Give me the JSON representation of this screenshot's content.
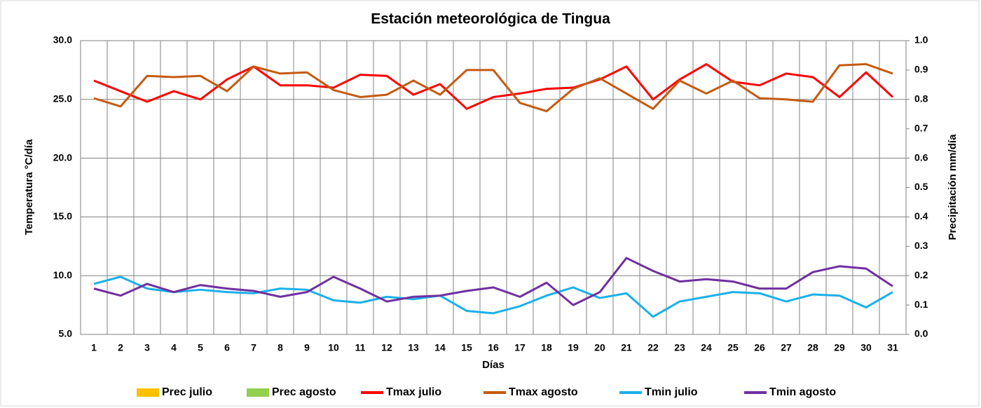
{
  "chart_data": {
    "type": "line",
    "title": "Estación meteorológica de Tingua",
    "x_label": "Días",
    "y_label": "Temperatura °C/día",
    "y2_label": "Precipitación mm/día",
    "categories": [
      "1",
      "2",
      "3",
      "4",
      "5",
      "6",
      "7",
      "8",
      "9",
      "10",
      "11",
      "12",
      "13",
      "14",
      "15",
      "16",
      "17",
      "18",
      "19",
      "20",
      "21",
      "22",
      "23",
      "24",
      "25",
      "26",
      "27",
      "28",
      "29",
      "30",
      "31"
    ],
    "ylim": [
      5,
      30
    ],
    "yticks": [
      {
        "value": 5,
        "label": "5.0"
      },
      {
        "value": 10,
        "label": "10.0"
      },
      {
        "value": 15,
        "label": "15.0"
      },
      {
        "value": 20,
        "label": "20.0"
      },
      {
        "value": 25,
        "label": "25.0"
      },
      {
        "value": 30,
        "label": "30.0"
      }
    ],
    "y2lim": [
      0,
      1
    ],
    "y2ticks": [
      {
        "value": 0,
        "label": "0.0"
      },
      0.1,
      0.2,
      0.3,
      0.4,
      0.5,
      0.6,
      0.7,
      0.8,
      0.9,
      {
        "value": 1,
        "label": "1.0"
      }
    ],
    "grid": true,
    "legend": "bottom",
    "series": [
      {
        "name": "Prec julio",
        "type": "bar",
        "axis": "y2",
        "color": "#ffc000",
        "values": [
          0,
          0,
          0,
          0,
          0,
          0,
          0,
          0,
          0,
          0,
          0,
          0,
          0,
          0,
          0,
          0,
          0,
          0,
          0,
          0,
          0,
          0,
          0,
          0,
          0,
          0,
          0,
          0,
          0,
          0,
          0
        ]
      },
      {
        "name": "Prec agosto",
        "type": "bar",
        "axis": "y2",
        "color": "#92d050",
        "values": [
          0,
          0,
          0,
          0,
          0,
          0,
          0,
          0,
          0,
          0,
          0,
          0,
          0,
          0,
          0,
          0,
          0,
          0,
          0,
          0,
          0,
          0,
          0,
          0,
          0,
          0,
          0,
          0,
          0,
          0,
          0
        ]
      },
      {
        "name": "Tmax julio",
        "type": "line",
        "color": "#ff0000",
        "values": [
          26.6,
          25.7,
          24.8,
          25.7,
          25.0,
          26.7,
          27.8,
          26.2,
          26.2,
          26.0,
          27.1,
          27.0,
          25.4,
          26.3,
          24.2,
          25.2,
          25.5,
          25.9,
          26.0,
          26.7,
          27.8,
          25.0,
          26.7,
          28.0,
          26.5,
          26.2,
          27.2,
          26.9,
          25.2,
          27.3,
          25.2
        ]
      },
      {
        "name": "Tmax agosto",
        "type": "line",
        "color": "#c55a11",
        "values": [
          25.1,
          24.4,
          27.0,
          26.9,
          27.0,
          25.7,
          27.8,
          27.2,
          27.3,
          25.8,
          25.2,
          25.4,
          26.6,
          25.4,
          27.5,
          27.5,
          24.7,
          24.0,
          25.9,
          26.8,
          25.5,
          24.2,
          26.6,
          25.5,
          26.6,
          25.1,
          25.0,
          24.8,
          27.9,
          28.0,
          27.2
        ]
      },
      {
        "name": "Tmin julio",
        "type": "line",
        "color": "#1ab0ea",
        "values": [
          9.3,
          9.9,
          8.9,
          8.6,
          8.8,
          8.6,
          8.5,
          8.9,
          8.8,
          7.9,
          7.7,
          8.2,
          8.0,
          8.3,
          7.0,
          6.8,
          7.4,
          8.3,
          9.0,
          8.1,
          8.5,
          6.5,
          7.8,
          8.2,
          8.6,
          8.5,
          7.8,
          8.4,
          8.3,
          7.3,
          8.6
        ]
      },
      {
        "name": "Tmin agosto",
        "type": "line",
        "color": "#7030a0",
        "values": [
          8.9,
          8.3,
          9.3,
          8.6,
          9.2,
          8.9,
          8.7,
          8.2,
          8.6,
          9.9,
          8.9,
          7.8,
          8.2,
          8.3,
          8.7,
          9.0,
          8.2,
          9.4,
          7.5,
          8.6,
          11.5,
          10.4,
          9.5,
          9.7,
          9.5,
          8.9,
          8.9,
          10.3,
          10.8,
          10.6,
          9.1
        ]
      }
    ]
  }
}
